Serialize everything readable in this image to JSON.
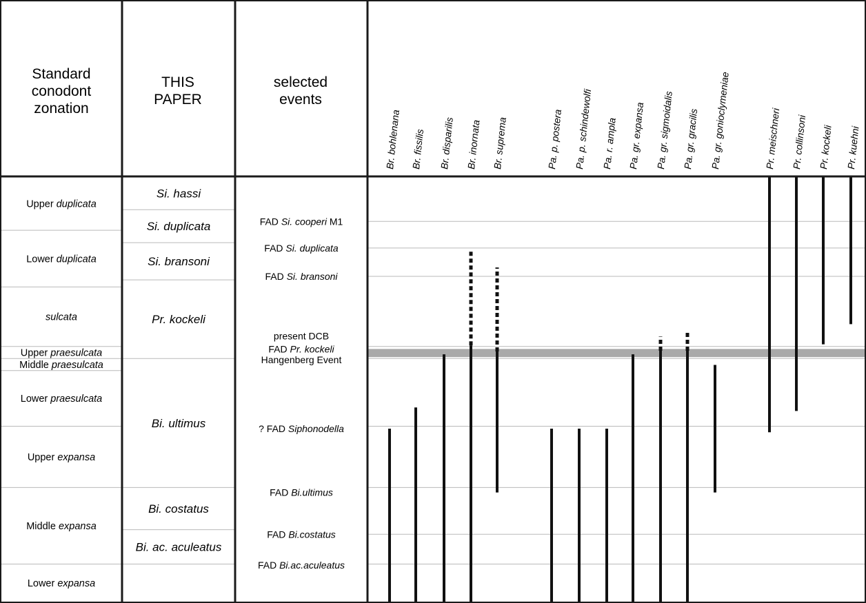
{
  "headers": {
    "standard": [
      "Standard",
      "conodont",
      "zonation"
    ],
    "this_paper": [
      "THIS",
      "PAPER"
    ],
    "events": [
      "selected",
      "events"
    ]
  },
  "standard_zones": [
    {
      "plain": "Upper ",
      "italic": "duplicata",
      "top": 0,
      "bottom": 1.5
    },
    {
      "plain": "Lower ",
      "italic": "duplicata",
      "top": 1.5,
      "bottom": 3.1
    },
    {
      "plain": "",
      "italic": "sulcata",
      "top": 3.1,
      "bottom": 4.78
    },
    {
      "plain": "Upper ",
      "italic": "praesulcata",
      "top": 4.78,
      "bottom": 5.12
    },
    {
      "plain": "Middle ",
      "italic": "praesulcata",
      "top": 5.12,
      "bottom": 5.46
    },
    {
      "plain": "Lower ",
      "italic": "praesulcata",
      "top": 5.46,
      "bottom": 7.03
    },
    {
      "plain": "Upper ",
      "italic": "expansa",
      "top": 7.03,
      "bottom": 8.76
    },
    {
      "plain": "Middle ",
      "italic": "expansa",
      "top": 8.76,
      "bottom": 10.92
    },
    {
      "plain": "Lower ",
      "italic": "expansa",
      "top": 10.92,
      "bottom": 12
    }
  ],
  "this_paper_zones": [
    {
      "name": "Si. hassi",
      "top": 0,
      "bottom": 0.92
    },
    {
      "name": "Si. duplicata",
      "top": 0.92,
      "bottom": 1.85
    },
    {
      "name": "Si. bransoni",
      "top": 1.85,
      "bottom": 2.9
    },
    {
      "name": "Pr. kockeli",
      "top": 2.9,
      "bottom": 5.12
    },
    {
      "name": "Bi. ultimus",
      "top": 5.12,
      "bottom": 8.76
    },
    {
      "name": "Bi. costatus",
      "top": 8.76,
      "bottom": 9.95
    },
    {
      "name": "Bi. ac. aculeatus",
      "top": 9.95,
      "bottom": 10.92
    },
    {
      "name": "",
      "top": 10.92,
      "bottom": 12
    }
  ],
  "events": [
    {
      "plain": "FAD ",
      "italic": "Si. cooperi",
      "suffix": " M1",
      "level": 1.25
    },
    {
      "plain": "FAD ",
      "italic": "Si. duplicata",
      "suffix": "",
      "level": 2.0
    },
    {
      "plain": "FAD ",
      "italic": "Si. bransoni",
      "suffix": "",
      "level": 2.8
    },
    {
      "plain": "present DCB",
      "italic": "",
      "suffix": "",
      "level": 4.48
    },
    {
      "plain": "FAD ",
      "italic": "Pr. kockeli",
      "suffix": "",
      "level": 4.85
    },
    {
      "plain": "Hangenberg Event",
      "italic": "",
      "suffix": "",
      "level": 5.15
    },
    {
      "plain": "? FAD ",
      "italic": "Siphonodella",
      "suffix": "",
      "level": 7.1
    },
    {
      "plain": "FAD ",
      "italic": "Bi.ultimus",
      "suffix": "",
      "level": 8.9
    },
    {
      "plain": "FAD ",
      "italic": "Bi.costatus",
      "suffix": "",
      "level": 10.08
    },
    {
      "plain": "FAD ",
      "italic": "Bi.ac.aculeatus",
      "suffix": "",
      "level": 10.95
    }
  ],
  "boundary_lines": [
    1.25,
    2.0,
    2.8,
    4.78,
    5.12,
    7.03,
    8.76,
    10.08,
    10.92
  ],
  "event_band": {
    "top": 4.85,
    "bottom": 5.08,
    "color": "#a9a9a9"
  },
  "taxa": [
    {
      "name": "Br. bohlenana",
      "solid": [
        12,
        7.1
      ],
      "dashed": null
    },
    {
      "name": "Br. fissilis",
      "solid": [
        12,
        6.5
      ],
      "dashed": null
    },
    {
      "name": "Br. disparilis",
      "solid": [
        12,
        5.0
      ],
      "dashed": null
    },
    {
      "name": "Br. inornata",
      "solid": [
        12,
        4.75
      ],
      "dashed": [
        4.75,
        2.05
      ]
    },
    {
      "name": "Br. suprema",
      "solid": [
        8.9,
        4.92
      ],
      "dashed": [
        4.92,
        2.55
      ]
    },
    {
      "name": "Pa. p. postera",
      "solid": [
        12,
        7.1
      ],
      "dashed": null
    },
    {
      "name": "Pa. p. schindewolfi",
      "solid": [
        12,
        7.1
      ],
      "dashed": null
    },
    {
      "name": "Pa. r. ampla",
      "solid": [
        12,
        7.1
      ],
      "dashed": null
    },
    {
      "name": "Pa. gr. expansa",
      "solid": [
        12,
        5.0
      ],
      "dashed": null
    },
    {
      "name": "Pa. gr. sigmoidalis",
      "solid": [
        12,
        4.9
      ],
      "dashed": [
        4.9,
        4.5
      ]
    },
    {
      "name": "Pa. gr. gracilis",
      "solid": [
        12,
        4.9
      ],
      "dashed": [
        4.9,
        4.35
      ]
    },
    {
      "name": "Pa. gr. gonioclymeniae",
      "solid": [
        8.9,
        5.3
      ],
      "dashed": null
    },
    {
      "name": "Pr. meischneri",
      "solid": [
        7.2,
        0
      ],
      "dashed": null
    },
    {
      "name": "Pr. collinsoni",
      "solid": [
        6.6,
        0
      ],
      "dashed": null
    },
    {
      "name": "Pr. kockeli",
      "solid": [
        4.72,
        0
      ],
      "dashed": null
    },
    {
      "name": "Pr. kuehni",
      "solid": [
        4.15,
        0
      ],
      "dashed": null
    }
  ],
  "colors": {
    "line": "#b9b9b9",
    "frame": "#1a1a1a",
    "range_bar": "#111111"
  }
}
